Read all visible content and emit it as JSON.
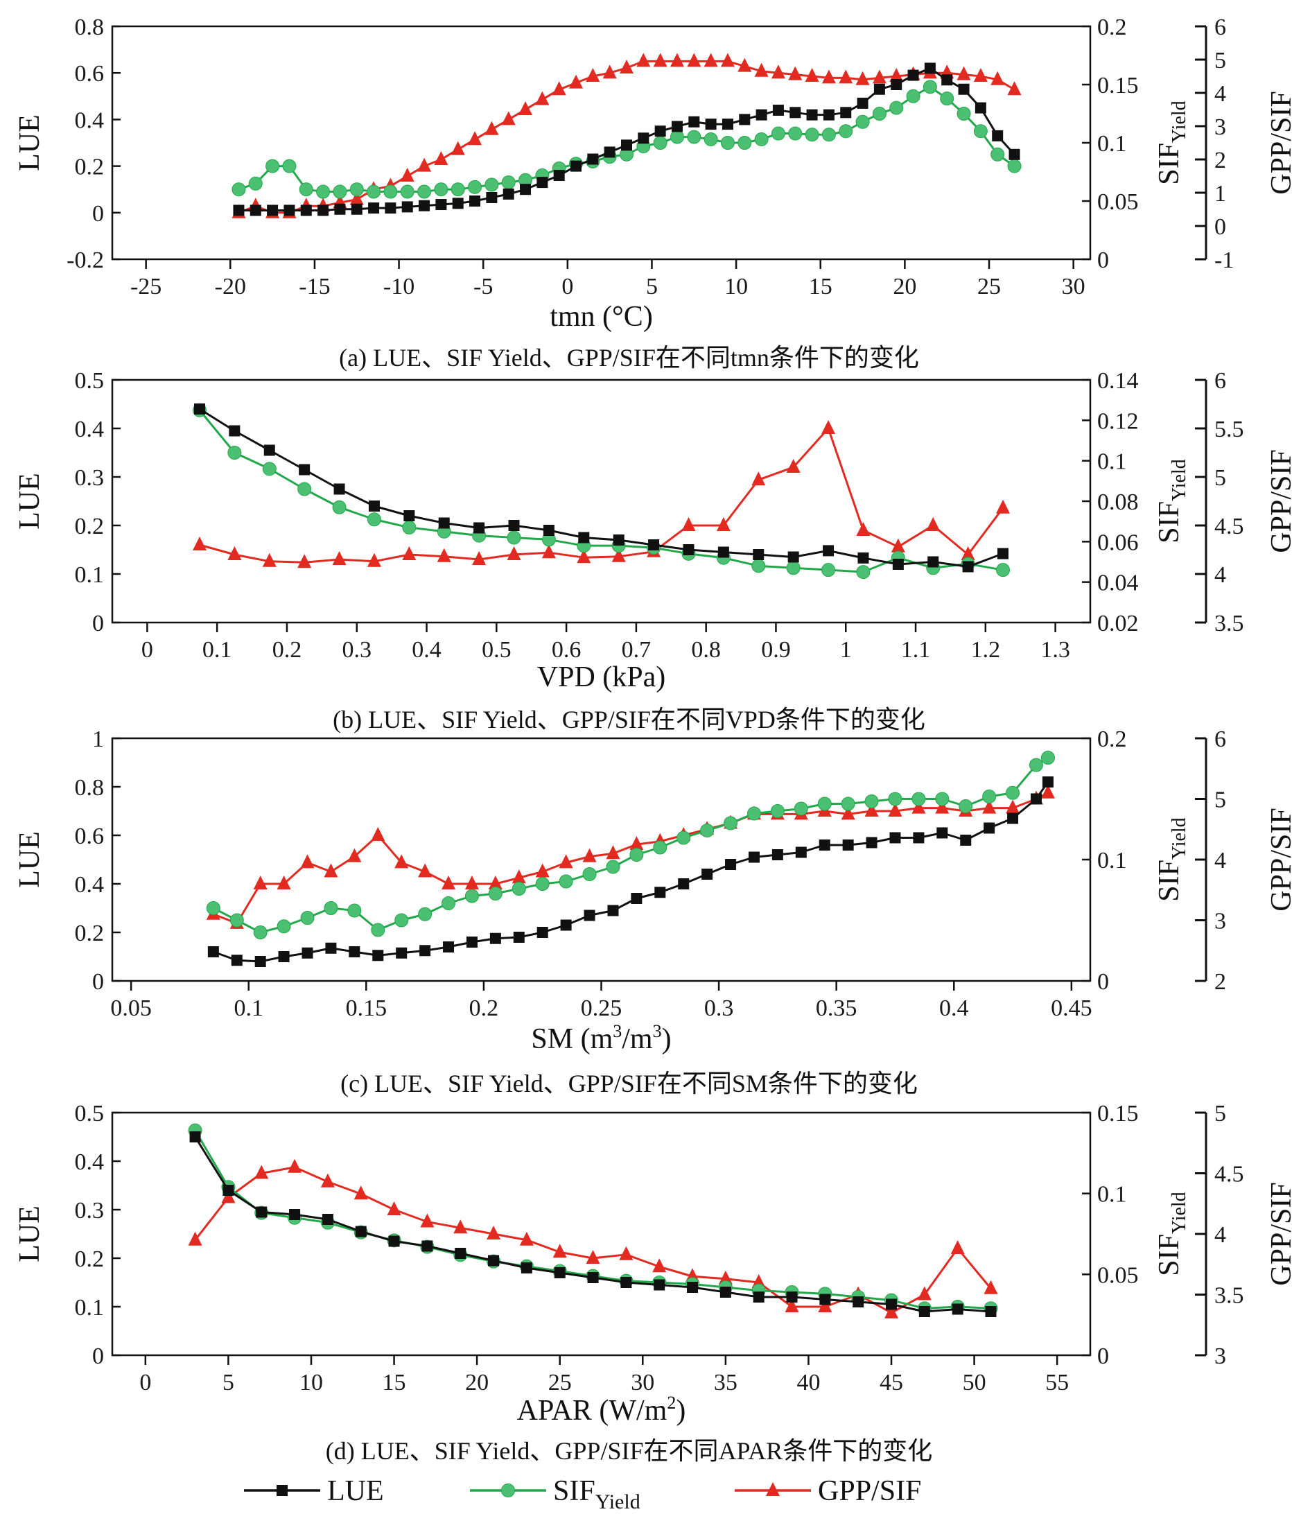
{
  "colors": {
    "lue": "#111111",
    "sif": "#22a84a",
    "sif_marker": "#4cc072",
    "gpp": "#e22a20",
    "axis": "#111111"
  },
  "legend": {
    "lue": "LUE",
    "sif_base": "SIF",
    "sif_sub": "Yield",
    "gpp": "GPP/SIF"
  },
  "chart_data": [
    {
      "type": "line",
      "caption": "(a) LUE、SIF Yield、GPP/SIF在不同tmn条件下的变化",
      "xlabel": "tmn (°C)",
      "ylabel": "LUE",
      "y2label": {
        "base": "SIF",
        "sub": "Yield"
      },
      "y3label": "GPP/SIF",
      "xlim": [
        -27,
        31
      ],
      "xticks": [
        -25,
        -20,
        -15,
        -10,
        -5,
        0,
        5,
        10,
        15,
        20,
        25,
        30
      ],
      "ylim": [
        -0.2,
        0.8
      ],
      "yticks": [
        "-0.2",
        "0",
        "0.2",
        "0.4",
        "0.6",
        "0.8"
      ],
      "y2lim": [
        0,
        0.2
      ],
      "y2ticks": [
        "0",
        "0.05",
        "0.1",
        "0.15",
        "0.2"
      ],
      "y3lim": [
        -1,
        6
      ],
      "y3ticks": [
        "-1",
        "0",
        "1",
        "2",
        "3",
        "4",
        "5",
        "6"
      ],
      "x": [
        -19.5,
        -18.5,
        -17.5,
        -16.5,
        -15.5,
        -14.5,
        -13.5,
        -12.5,
        -11.5,
        -10.5,
        -9.5,
        -8.5,
        -7.5,
        -6.5,
        -5.5,
        -4.5,
        -3.5,
        -2.5,
        -1.5,
        -0.5,
        0.5,
        1.5,
        2.5,
        3.5,
        4.5,
        5.5,
        6.5,
        7.5,
        8.5,
        9.5,
        10.5,
        11.5,
        12.5,
        13.5,
        14.5,
        15.5,
        16.5,
        17.5,
        18.5,
        19.5,
        20.5,
        21.5,
        22.5,
        23.5,
        24.5,
        25.5,
        26.5
      ],
      "series": [
        {
          "key": "lue",
          "axis": "y",
          "values": [
            0.01,
            0.01,
            0.01,
            0.01,
            0.01,
            0.01,
            0.015,
            0.015,
            0.02,
            0.02,
            0.025,
            0.03,
            0.035,
            0.04,
            0.05,
            0.065,
            0.08,
            0.1,
            0.13,
            0.16,
            0.2,
            0.23,
            0.26,
            0.29,
            0.32,
            0.35,
            0.37,
            0.39,
            0.38,
            0.38,
            0.4,
            0.42,
            0.44,
            0.43,
            0.42,
            0.42,
            0.43,
            0.47,
            0.53,
            0.55,
            0.59,
            0.62,
            0.57,
            0.53,
            0.45,
            0.33,
            0.25
          ]
        },
        {
          "key": "sif",
          "axis": "y2",
          "values": [
            0.06,
            0.065,
            0.08,
            0.08,
            0.06,
            0.058,
            0.058,
            0.06,
            0.058,
            0.058,
            0.058,
            0.058,
            0.06,
            0.06,
            0.062,
            0.064,
            0.066,
            0.068,
            0.072,
            0.078,
            0.082,
            0.084,
            0.088,
            0.09,
            0.097,
            0.1,
            0.105,
            0.105,
            0.103,
            0.1,
            0.1,
            0.103,
            0.108,
            0.108,
            0.107,
            0.107,
            0.11,
            0.118,
            0.125,
            0.13,
            0.14,
            0.148,
            0.138,
            0.125,
            0.11,
            0.09,
            0.08
          ]
        },
        {
          "key": "gpp",
          "axis": "y3",
          "values": [
            0.4,
            0.6,
            0.4,
            0.4,
            0.6,
            0.6,
            0.7,
            0.8,
            1.1,
            1.2,
            1.5,
            1.8,
            2.0,
            2.3,
            2.6,
            2.9,
            3.2,
            3.5,
            3.8,
            4.1,
            4.3,
            4.5,
            4.6,
            4.75,
            4.95,
            4.95,
            4.95,
            4.95,
            4.95,
            4.95,
            4.8,
            4.65,
            4.6,
            4.55,
            4.5,
            4.45,
            4.45,
            4.4,
            4.45,
            4.5,
            4.55,
            4.6,
            4.6,
            4.55,
            4.5,
            4.4,
            4.1
          ]
        }
      ]
    },
    {
      "type": "line",
      "caption": "(b) LUE、SIF Yield、GPP/SIF在不同VPD条件下的变化",
      "xlabel": "VPD (kPa)",
      "ylabel": "LUE",
      "y2label": {
        "base": "SIF",
        "sub": "Yield"
      },
      "y3label": "GPP/SIF",
      "xlim": [
        -0.05,
        1.35
      ],
      "xticks": [
        "0",
        "0.1",
        "0.2",
        "0.3",
        "0.4",
        "0.5",
        "0.6",
        "0.7",
        "0.8",
        "0.9",
        "1",
        "1.1",
        "1.2",
        "1.3"
      ],
      "ylim": [
        0,
        0.5
      ],
      "yticks": [
        "0",
        "0.1",
        "0.2",
        "0.3",
        "0.4",
        "0.5"
      ],
      "y2lim": [
        0.02,
        0.14
      ],
      "y2ticks": [
        "0.02",
        "0.04",
        "0.06",
        "0.08",
        "0.1",
        "0.12",
        "0.14"
      ],
      "y3lim": [
        3.5,
        6
      ],
      "y3ticks": [
        "3.5",
        "4",
        "4.5",
        "5",
        "5.5",
        "6"
      ],
      "x": [
        0.075,
        0.125,
        0.175,
        0.225,
        0.275,
        0.325,
        0.375,
        0.425,
        0.475,
        0.525,
        0.575,
        0.625,
        0.675,
        0.725,
        0.775,
        0.825,
        0.875,
        0.925,
        0.975,
        1.025,
        1.075,
        1.125,
        1.175,
        1.225
      ],
      "series": [
        {
          "key": "lue",
          "axis": "y",
          "values": [
            0.44,
            0.395,
            0.355,
            0.315,
            0.275,
            0.24,
            0.22,
            0.205,
            0.195,
            0.2,
            0.19,
            0.175,
            0.17,
            0.16,
            0.15,
            0.145,
            0.14,
            0.135,
            0.148,
            0.133,
            0.12,
            0.125,
            0.115,
            0.142
          ]
        },
        {
          "key": "sif",
          "axis": "y2",
          "values": [
            0.125,
            0.104,
            0.096,
            0.086,
            0.077,
            0.071,
            0.067,
            0.065,
            0.063,
            0.062,
            0.061,
            0.058,
            0.058,
            0.057,
            0.054,
            0.052,
            0.048,
            0.047,
            0.046,
            0.045,
            0.052,
            0.047,
            0.049,
            0.046
          ]
        },
        {
          "key": "gpp",
          "axis": "y3",
          "values": [
            4.3,
            4.2,
            4.13,
            4.12,
            4.15,
            4.13,
            4.2,
            4.18,
            4.15,
            4.2,
            4.22,
            4.17,
            4.18,
            4.23,
            4.5,
            4.5,
            4.97,
            5.1,
            5.5,
            4.45,
            4.28,
            4.5,
            4.2,
            4.68
          ]
        }
      ]
    },
    {
      "type": "line",
      "caption": "(c) LUE、SIF Yield、GPP/SIF在不同SM条件下的变化",
      "xlabel_base": "SM (m",
      "xlabel_sup1": "3",
      "xlabel_mid": "/m",
      "xlabel_sup2": "3",
      "xlabel_end": ")",
      "ylabel": "LUE",
      "y2label": {
        "base": "SIF",
        "sub": "Yield"
      },
      "y3label": "GPP/SIF",
      "xlim": [
        0.042,
        0.458
      ],
      "xticks": [
        "0.05",
        "0.1",
        "0.15",
        "0.2",
        "0.25",
        "0.3",
        "0.35",
        "0.4",
        "0.45"
      ],
      "ylim": [
        0,
        1
      ],
      "yticks": [
        "0",
        "0.2",
        "0.4",
        "0.6",
        "0.8",
        "1"
      ],
      "y2lim": [
        0,
        0.2
      ],
      "y2ticks": [
        "0",
        "0.1",
        "0.2"
      ],
      "y3lim": [
        2,
        6
      ],
      "y3ticks": [
        "2",
        "3",
        "4",
        "5",
        "6"
      ],
      "x": [
        0.085,
        0.095,
        0.105,
        0.115,
        0.125,
        0.135,
        0.145,
        0.155,
        0.165,
        0.175,
        0.185,
        0.195,
        0.205,
        0.215,
        0.225,
        0.235,
        0.245,
        0.255,
        0.265,
        0.275,
        0.285,
        0.295,
        0.305,
        0.315,
        0.325,
        0.335,
        0.345,
        0.355,
        0.365,
        0.375,
        0.385,
        0.395,
        0.405,
        0.415,
        0.425,
        0.435,
        0.44
      ],
      "series": [
        {
          "key": "lue",
          "axis": "y",
          "values": [
            0.12,
            0.085,
            0.08,
            0.1,
            0.115,
            0.135,
            0.12,
            0.105,
            0.115,
            0.125,
            0.14,
            0.16,
            0.175,
            0.18,
            0.2,
            0.23,
            0.27,
            0.29,
            0.34,
            0.365,
            0.4,
            0.44,
            0.48,
            0.51,
            0.52,
            0.53,
            0.56,
            0.56,
            0.57,
            0.59,
            0.59,
            0.61,
            0.58,
            0.63,
            0.67,
            0.75,
            0.82
          ]
        },
        {
          "key": "sif",
          "axis": "y2",
          "values": [
            0.06,
            0.05,
            0.04,
            0.045,
            0.052,
            0.06,
            0.058,
            0.042,
            0.05,
            0.055,
            0.064,
            0.07,
            0.072,
            0.076,
            0.08,
            0.082,
            0.088,
            0.094,
            0.104,
            0.11,
            0.118,
            0.124,
            0.13,
            0.138,
            0.14,
            0.142,
            0.146,
            0.146,
            0.148,
            0.15,
            0.15,
            0.15,
            0.144,
            0.152,
            0.155,
            0.178,
            0.184
          ]
        },
        {
          "key": "gpp",
          "axis": "y3",
          "values": [
            3.1,
            2.95,
            3.6,
            3.6,
            3.95,
            3.8,
            4.05,
            4.4,
            3.95,
            3.8,
            3.6,
            3.6,
            3.6,
            3.7,
            3.8,
            3.95,
            4.05,
            4.1,
            4.25,
            4.3,
            4.4,
            4.5,
            4.6,
            4.75,
            4.75,
            4.75,
            4.8,
            4.75,
            4.8,
            4.8,
            4.85,
            4.85,
            4.8,
            4.85,
            4.85,
            5.0,
            5.1
          ]
        }
      ]
    },
    {
      "type": "line",
      "caption": "(d) LUE、SIF Yield、GPP/SIF在不同APAR条件下的变化",
      "xlabel_base": "APAR (W/m",
      "xlabel_sup1": "2",
      "xlabel_end": ")",
      "ylabel": "LUE",
      "y2label": {
        "base": "SIF",
        "sub": "Yield"
      },
      "y3label": "GPP/SIF",
      "xlim": [
        -2,
        57
      ],
      "xticks": [
        "0",
        "5",
        "10",
        "15",
        "20",
        "25",
        "30",
        "35",
        "40",
        "45",
        "50",
        "55"
      ],
      "ylim": [
        0,
        0.5
      ],
      "yticks": [
        "0",
        "0.1",
        "0.2",
        "0.3",
        "0.4",
        "0.5"
      ],
      "y2lim": [
        0,
        0.15
      ],
      "y2ticks": [
        "0",
        "0.05",
        "0.1",
        "0.15"
      ],
      "y3lim": [
        3,
        5
      ],
      "y3ticks": [
        "3",
        "3.5",
        "4",
        "4.5",
        "5"
      ],
      "x": [
        3,
        5,
        7,
        9,
        11,
        13,
        15,
        17,
        19,
        21,
        23,
        25,
        27,
        29,
        31,
        33,
        35,
        37,
        39,
        41,
        43,
        45,
        47,
        49,
        51
      ],
      "series": [
        {
          "key": "lue",
          "axis": "y",
          "values": [
            0.45,
            0.34,
            0.295,
            0.29,
            0.28,
            0.255,
            0.235,
            0.225,
            0.21,
            0.195,
            0.18,
            0.17,
            0.16,
            0.15,
            0.145,
            0.14,
            0.13,
            0.12,
            0.12,
            0.115,
            0.11,
            0.105,
            0.09,
            0.095,
            0.09
          ]
        },
        {
          "key": "sif",
          "axis": "y2",
          "values": [
            0.139,
            0.104,
            0.088,
            0.085,
            0.082,
            0.076,
            0.071,
            0.067,
            0.062,
            0.058,
            0.055,
            0.052,
            0.049,
            0.046,
            0.045,
            0.044,
            0.042,
            0.04,
            0.039,
            0.038,
            0.036,
            0.034,
            0.029,
            0.03,
            0.029
          ]
        },
        {
          "key": "gpp",
          "axis": "y3",
          "values": [
            3.95,
            4.3,
            4.5,
            4.55,
            4.43,
            4.33,
            4.2,
            4.1,
            4.05,
            4.0,
            3.95,
            3.85,
            3.8,
            3.83,
            3.73,
            3.65,
            3.63,
            3.6,
            3.4,
            3.4,
            3.5,
            3.35,
            3.5,
            3.88,
            3.55
          ]
        }
      ]
    }
  ]
}
